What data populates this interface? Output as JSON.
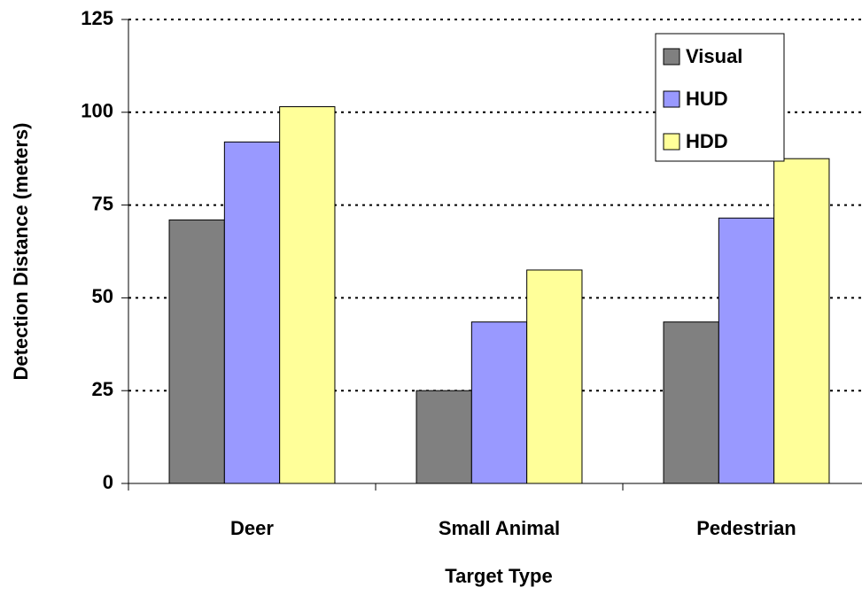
{
  "chart_data": {
    "type": "bar",
    "x_label": "Target Type",
    "y_label": "Detection Distance (meters)",
    "categories": [
      "Deer",
      "Small Animal",
      "Pedestrian"
    ],
    "series": [
      {
        "name": "Visual",
        "color": "#808080",
        "values": [
          71,
          25,
          43.5
        ]
      },
      {
        "name": "HUD",
        "color": "#9999ff",
        "values": [
          92,
          43.5,
          71.5
        ]
      },
      {
        "name": "HDD",
        "color": "#ffff99",
        "values": [
          101.5,
          57.5,
          87.5
        ]
      }
    ],
    "ylim": [
      0,
      125
    ],
    "yticks": [
      0,
      25,
      50,
      75,
      100,
      125
    ],
    "grid": true,
    "legend": "upper right"
  }
}
